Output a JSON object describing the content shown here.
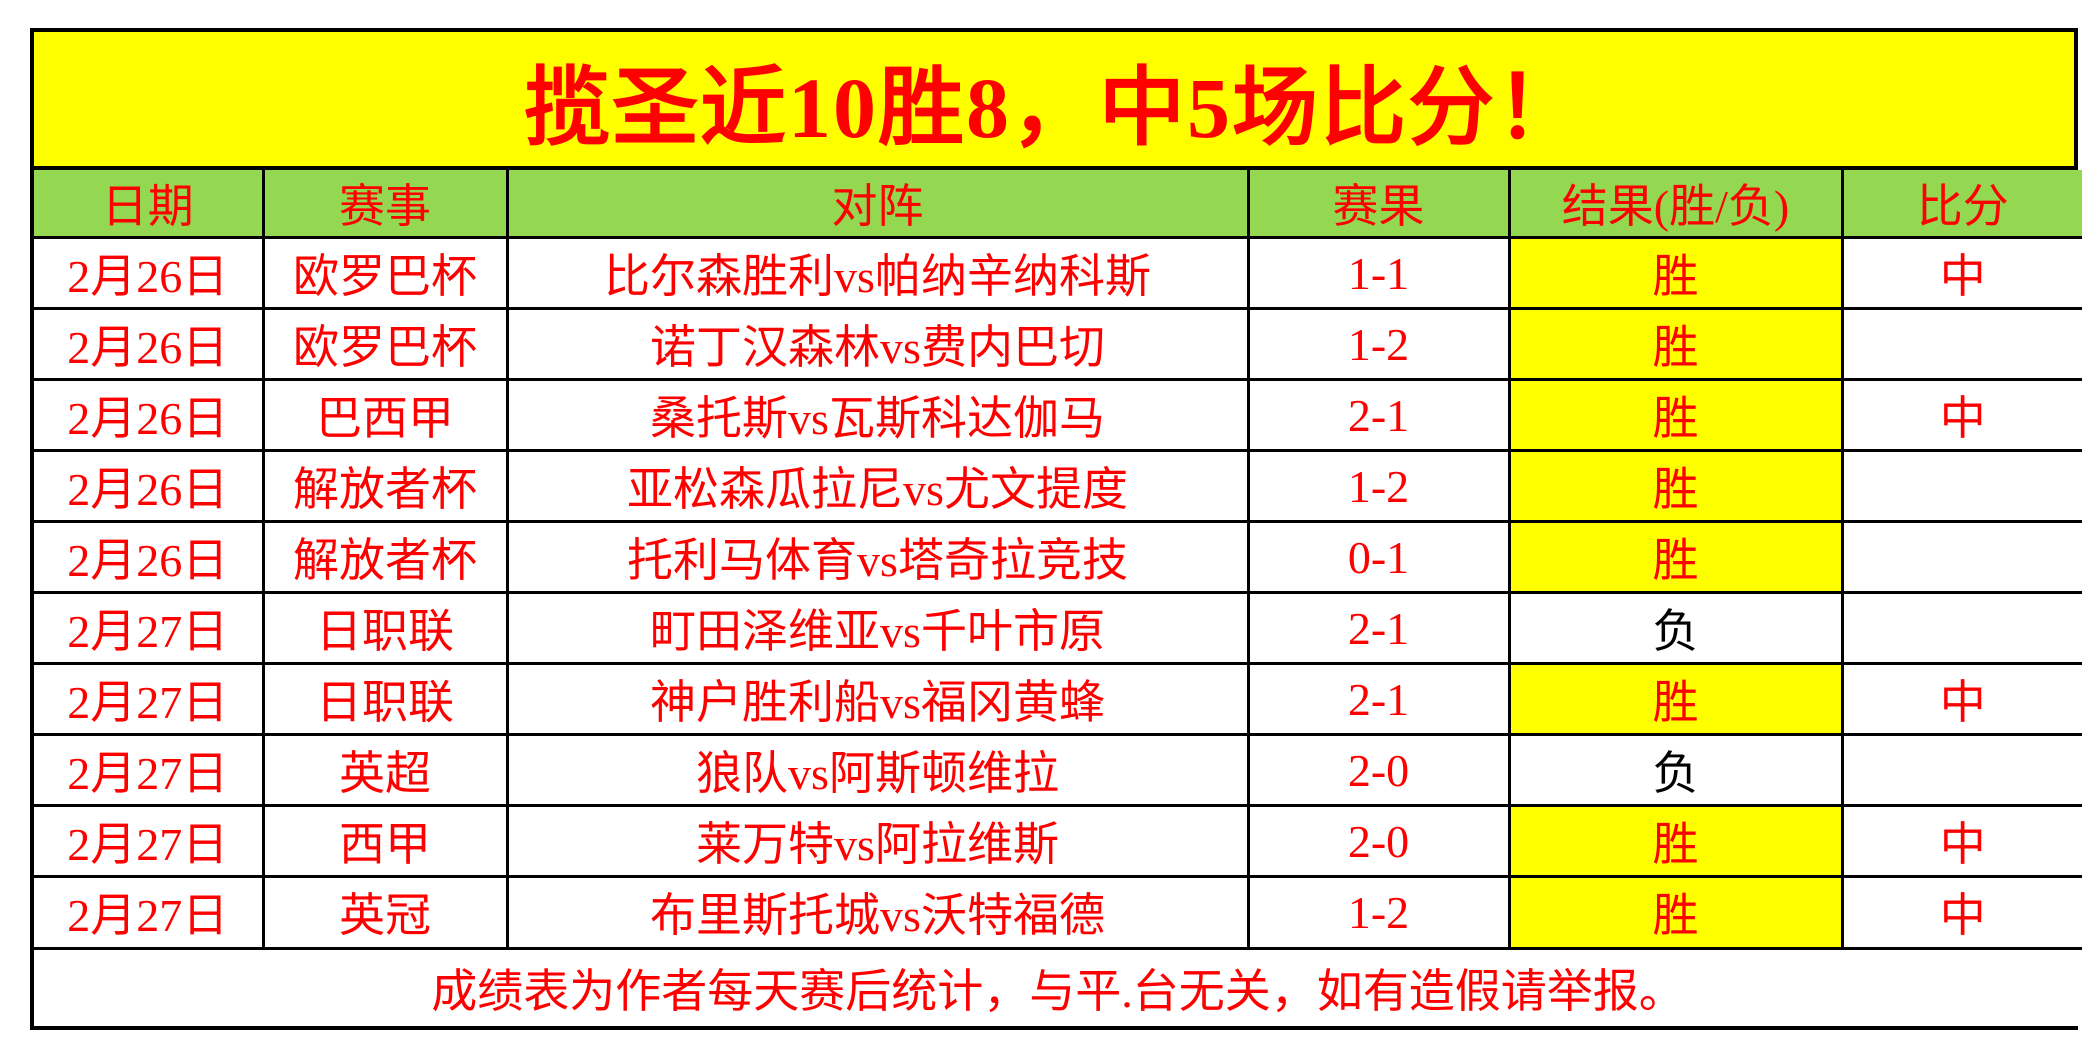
{
  "title": "揽圣近10胜8，中5场比分！",
  "table": {
    "headers": {
      "date": "日期",
      "league": "赛事",
      "match": "对阵",
      "score": "赛果",
      "result": "结果(胜/负)",
      "hit": "比分"
    },
    "rows": [
      {
        "date": "2月26日",
        "league": "欧罗巴杯",
        "match": "比尔森胜利vs帕纳辛纳科斯",
        "score": "1-1",
        "result": "胜",
        "hit": "中"
      },
      {
        "date": "2月26日",
        "league": "欧罗巴杯",
        "match": "诺丁汉森林vs费内巴切",
        "score": "1-2",
        "result": "胜",
        "hit": ""
      },
      {
        "date": "2月26日",
        "league": "巴西甲",
        "match": "桑托斯vs瓦斯科达伽马",
        "score": "2-1",
        "result": "胜",
        "hit": "中"
      },
      {
        "date": "2月26日",
        "league": "解放者杯",
        "match": "亚松森瓜拉尼vs尤文提度",
        "score": "1-2",
        "result": "胜",
        "hit": ""
      },
      {
        "date": "2月26日",
        "league": "解放者杯",
        "match": "托利马体育vs塔奇拉竞技",
        "score": "0-1",
        "result": "胜",
        "hit": ""
      },
      {
        "date": "2月27日",
        "league": "日职联",
        "match": "町田泽维亚vs千叶市原",
        "score": "2-1",
        "result": "负",
        "hit": ""
      },
      {
        "date": "2月27日",
        "league": "日职联",
        "match": "神户胜利船vs福冈黄蜂",
        "score": "2-1",
        "result": "胜",
        "hit": "中"
      },
      {
        "date": "2月27日",
        "league": "英超",
        "match": "狼队vs阿斯顿维拉",
        "score": "2-0",
        "result": "负",
        "hit": ""
      },
      {
        "date": "2月27日",
        "league": "西甲",
        "match": "莱万特vs阿拉维斯",
        "score": "2-0",
        "result": "胜",
        "hit": "中"
      },
      {
        "date": "2月27日",
        "league": "英冠",
        "match": "布里斯托城vs沃特福德",
        "score": "1-2",
        "result": "胜",
        "hit": "中"
      }
    ],
    "footer": "成绩表为作者每天赛后统计，与平.台无关，如有造假请举报。"
  },
  "colors": {
    "banner_bg": "#FFFF00",
    "header_bg": "#94D852",
    "win_cell_bg": "#FFFF00",
    "text_red": "#FF0000",
    "lose_text": "#000000",
    "border": "#000000"
  }
}
